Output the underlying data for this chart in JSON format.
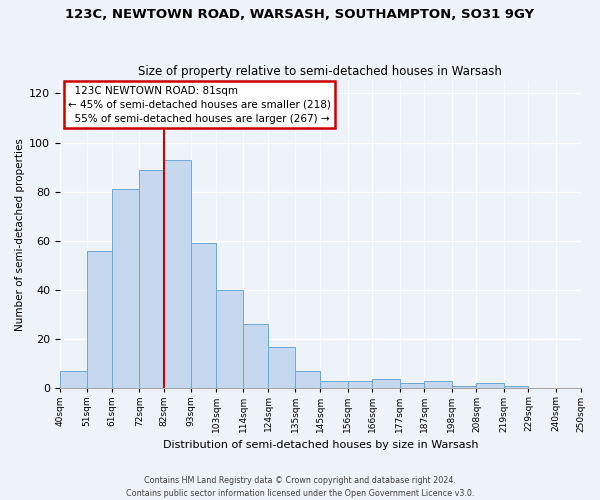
{
  "title": "123C, NEWTOWN ROAD, WARSASH, SOUTHAMPTON, SO31 9GY",
  "subtitle": "Size of property relative to semi-detached houses in Warsash",
  "xlabel": "Distribution of semi-detached houses by size in Warsash",
  "ylabel": "Number of semi-detached properties",
  "bin_edges": [
    40,
    51,
    61,
    72,
    82,
    93,
    103,
    114,
    124,
    135,
    145,
    156,
    166,
    177,
    187,
    198,
    208,
    219,
    229,
    240,
    250
  ],
  "bar_heights": [
    7,
    56,
    81,
    89,
    93,
    59,
    40,
    26,
    17,
    7,
    3,
    3,
    4,
    2,
    3,
    1,
    2,
    1,
    0,
    0
  ],
  "tick_labels": [
    "40sqm",
    "51sqm",
    "61sqm",
    "72sqm",
    "82sqm",
    "93sqm",
    "103sqm",
    "114sqm",
    "124sqm",
    "135sqm",
    "145sqm",
    "156sqm",
    "166sqm",
    "177sqm",
    "187sqm",
    "198sqm",
    "208sqm",
    "219sqm",
    "229sqm",
    "240sqm",
    "250sqm"
  ],
  "bar_color": "#c5d8f0",
  "bar_edge_color": "#6aaad4",
  "property_line_x": 82,
  "pct_smaller": 45,
  "count_smaller": 218,
  "pct_larger": 55,
  "count_larger": 267,
  "annotation_address": "123C NEWTOWN ROAD: 81sqm",
  "ylim": [
    0,
    125
  ],
  "yticks": [
    0,
    20,
    40,
    60,
    80,
    100,
    120
  ],
  "footer1": "Contains HM Land Registry data © Crown copyright and database right 2024.",
  "footer2": "Contains public sector information licensed under the Open Government Licence v3.0.",
  "bg_color": "#eef2f9",
  "grid_color": "#ffffff",
  "annotation_box_facecolor": "#ffffff",
  "annotation_box_edge": "#cc0000",
  "line_color": "#cc0000",
  "title_fontsize": 9.5,
  "subtitle_fontsize": 8.5,
  "xlabel_fontsize": 8,
  "ylabel_fontsize": 7.5,
  "tick_fontsize": 6.5,
  "annotation_fontsize": 7.5,
  "footer_fontsize": 5.8
}
